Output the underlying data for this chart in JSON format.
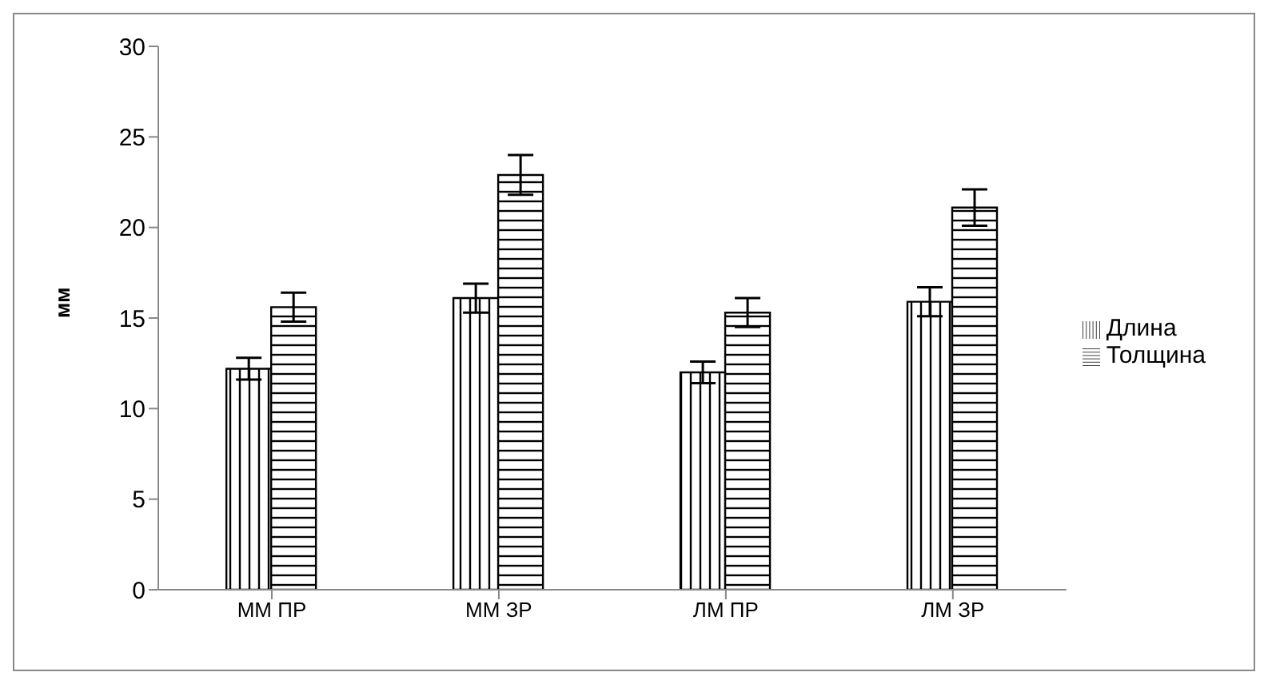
{
  "chart_data": {
    "type": "bar",
    "ylabel": "мм",
    "categories": [
      "ММ ПР",
      "ММ ЗР",
      "ЛМ ПР",
      "ЛМ ЗР"
    ],
    "series": [
      {
        "name": "Длина",
        "color": "#000000",
        "values": [
          12.2,
          16.1,
          12.0,
          15.9
        ],
        "errors": [
          0.6,
          0.8,
          0.6,
          0.8
        ]
      },
      {
        "name": "Толщина",
        "color": "#000000",
        "values": [
          15.6,
          22.9,
          15.3,
          21.1
        ],
        "errors": [
          0.8,
          1.1,
          0.8,
          1.0
        ]
      }
    ],
    "ylim": [
      0,
      30
    ],
    "yticks": [
      0,
      5,
      10,
      15,
      20,
      25,
      30
    ],
    "grid": false,
    "legend": "right"
  }
}
